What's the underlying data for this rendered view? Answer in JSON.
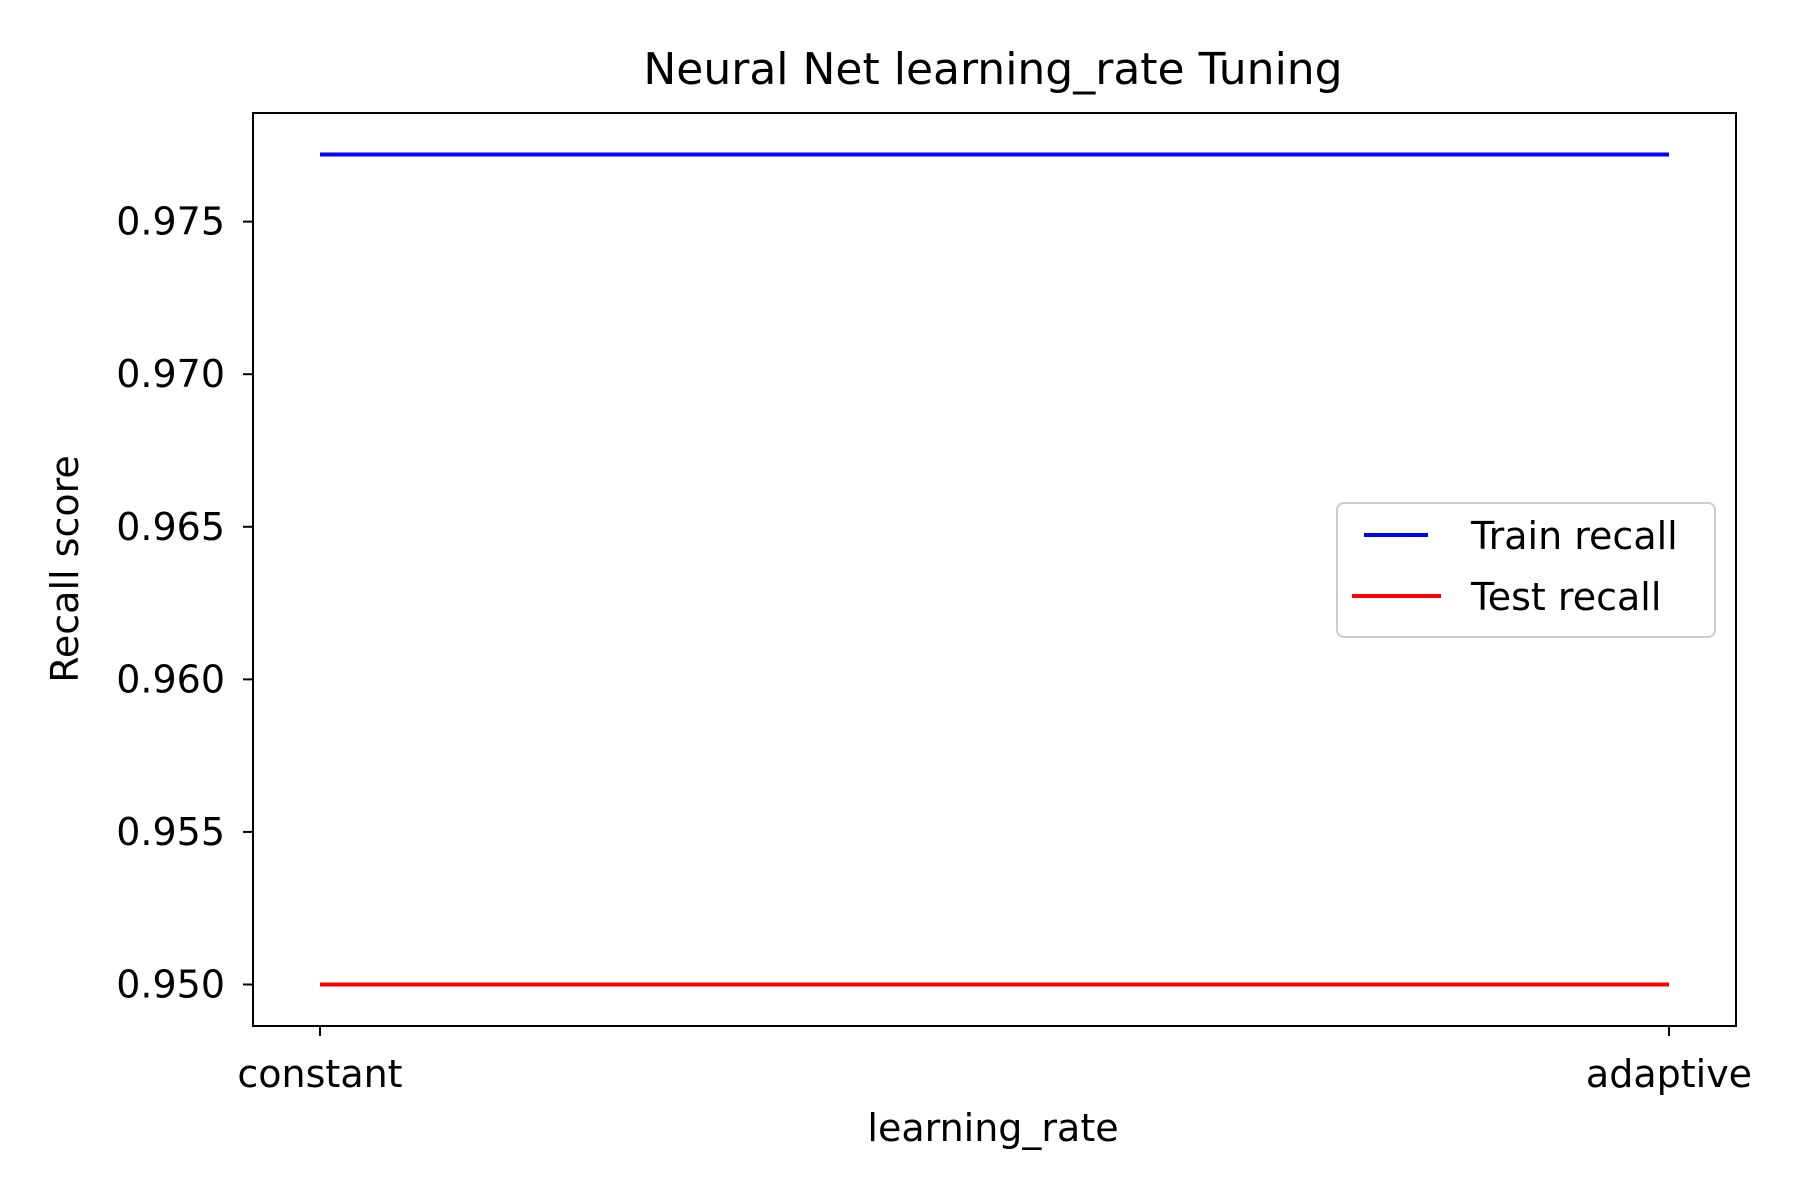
{
  "chart_data": {
    "type": "line",
    "title": "Neural Net learning_rate Tuning",
    "xlabel": "learning_rate",
    "ylabel": "Recall score",
    "categories": [
      "constant",
      "adaptive"
    ],
    "series": [
      {
        "name": "Train recall",
        "values": [
          0.9772,
          0.9772
        ],
        "color": "#0000ff"
      },
      {
        "name": "Test recall",
        "values": [
          0.95,
          0.95
        ],
        "color": "#ff0000"
      }
    ],
    "ylim": [
      0.94864,
      0.97856
    ],
    "yticks": [
      0.95,
      0.955,
      0.96,
      0.965,
      0.97,
      0.975
    ],
    "ytick_labels": [
      "0.950",
      "0.955",
      "0.960",
      "0.965",
      "0.970",
      "0.975"
    ],
    "grid": false,
    "legend_position": "center-right"
  }
}
